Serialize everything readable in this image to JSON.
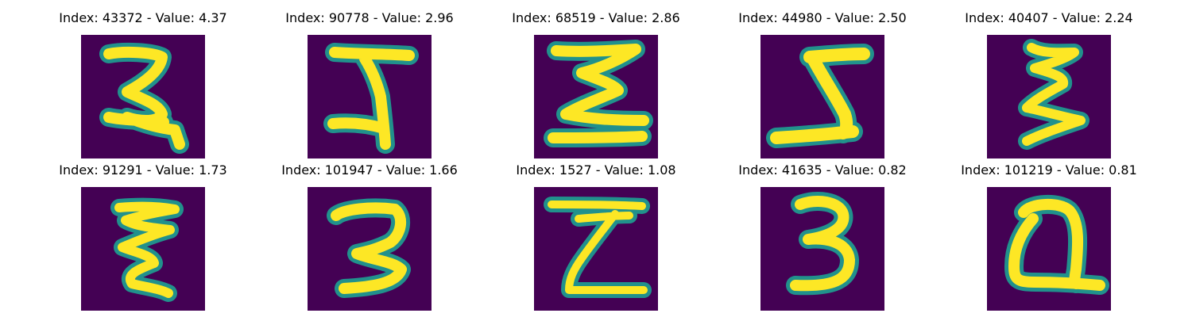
{
  "colors": {
    "background": "#440154",
    "stroke_edge": "#21918c",
    "stroke_core": "#fde725"
  },
  "panels": [
    {
      "title": "Index: 43372 - Value: 4.37",
      "glyph": "2"
    },
    {
      "title": "Index: 90778 - Value: 2.96",
      "glyph": "5-like"
    },
    {
      "title": "Index: 68519 - Value: 2.86",
      "glyph": "sigma-like"
    },
    {
      "title": "Index: 44980 - Value: 2.50",
      "glyph": "Z-like"
    },
    {
      "title": "Index: 40407 - Value: 2.24",
      "glyph": "E-zigzag"
    },
    {
      "title": "Index: 91291 - Value: 1.73",
      "glyph": "E-like"
    },
    {
      "title": "Index: 101947 - Value: 1.66",
      "glyph": "2-curl"
    },
    {
      "title": "Index: 1527 - Value: 1.08",
      "glyph": "Z"
    },
    {
      "title": "Index: 41635 - Value: 0.82",
      "glyph": "3"
    },
    {
      "title": "Index: 101219 - Value: 0.81",
      "glyph": "Q-like"
    }
  ]
}
